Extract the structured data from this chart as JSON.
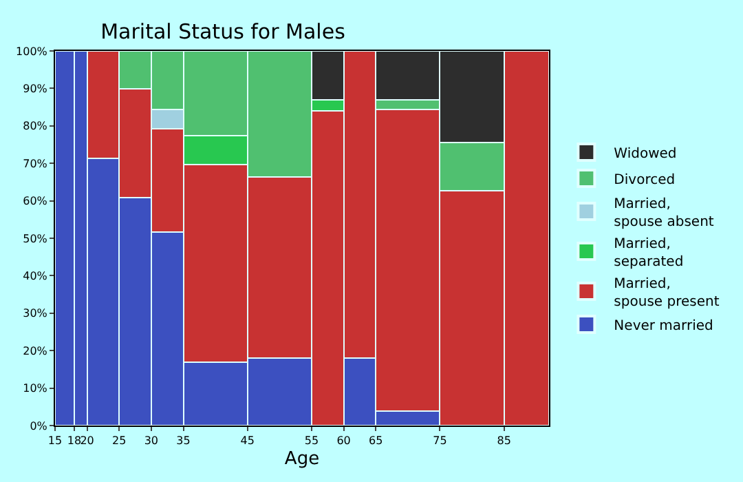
{
  "chart_data": {
    "type": "bar",
    "stacked": true,
    "title": "Marital Status for Males",
    "xlabel": "Age",
    "x": [
      16.5,
      19,
      22.5,
      27.5,
      32.5,
      40,
      50,
      57.5,
      62.5,
      70,
      80,
      88.5
    ],
    "xlim": [
      15,
      92
    ],
    "xticks": [
      15,
      18,
      20,
      25,
      30,
      35,
      45,
      55,
      60,
      65,
      75,
      85
    ],
    "ylim": [
      0,
      100
    ],
    "yticks": [
      {
        "value": 0,
        "label": "0%"
      },
      {
        "value": 10,
        "label": "10%"
      },
      {
        "value": 20,
        "label": "20%"
      },
      {
        "value": 30,
        "label": "30%"
      },
      {
        "value": 40,
        "label": "40%"
      },
      {
        "value": 50,
        "label": "50%"
      },
      {
        "value": 60,
        "label": "60%"
      },
      {
        "value": 70,
        "label": "70%"
      },
      {
        "value": 80,
        "label": "80%"
      },
      {
        "value": 90,
        "label": "90%"
      },
      {
        "value": 100,
        "label": "100%"
      }
    ],
    "legend": "right",
    "series": [
      {
        "name": "Never married",
        "color": "#3c50c0",
        "values": [
          100,
          100,
          71.4,
          60.9,
          51.6,
          16.9,
          18.0,
          null,
          18.0,
          3.8,
          null,
          null
        ]
      },
      {
        "name": "Married, spouse present",
        "color": "#c83232",
        "values": [
          null,
          null,
          28.6,
          29.0,
          27.6,
          52.8,
          48.4,
          84.0,
          82.0,
          80.6,
          62.7,
          100
        ]
      },
      {
        "name": "Married, separated",
        "color": "#28c850",
        "values": [
          null,
          null,
          null,
          null,
          null,
          7.7,
          null,
          2.9,
          null,
          null,
          null,
          null
        ]
      },
      {
        "name": "Married, spouse absent",
        "color": "#a0d0e0",
        "values": [
          null,
          null,
          null,
          null,
          5.2,
          null,
          null,
          null,
          null,
          null,
          null,
          null
        ]
      },
      {
        "name": "Divorced",
        "color": "#50c070",
        "values": [
          null,
          null,
          null,
          10.1,
          15.6,
          22.6,
          33.6,
          null,
          null,
          2.5,
          12.9,
          null
        ]
      },
      {
        "name": "Widowed",
        "color": "#2d2d2d",
        "values": [
          null,
          null,
          null,
          null,
          null,
          null,
          null,
          13.1,
          null,
          13.1,
          24.4,
          null
        ]
      }
    ]
  }
}
